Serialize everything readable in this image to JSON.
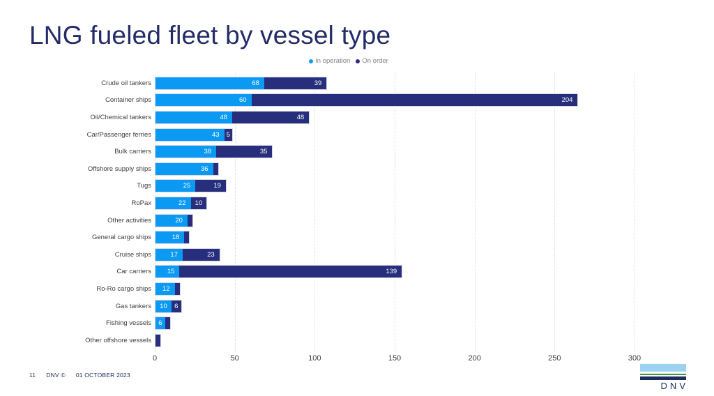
{
  "title": "LNG fueled fleet by vessel type",
  "legend": {
    "items": [
      {
        "label": "In operation",
        "color": "#0a9af4"
      },
      {
        "label": "On order",
        "color": "#272f7d"
      }
    ]
  },
  "chart_data": {
    "type": "bar",
    "orientation": "horizontal",
    "stacked": true,
    "title": "LNG fueled fleet by vessel type",
    "categories": [
      "Crude oil tankers",
      "Container ships",
      "Oil/Chemical tankers",
      "Car/Passenger ferries",
      "Bulk carriers",
      "Offshore supply ships",
      "Tugs",
      "RoPax",
      "Other activities",
      "General cargo ships",
      "Cruise ships",
      "Car carriers",
      "Ro-Ro cargo ships",
      "Gas tankers",
      "Fishing vessels",
      "Other offshore vessels"
    ],
    "series": [
      {
        "name": "In operation",
        "color": "#0a9af4",
        "values": [
          68,
          60,
          48,
          43,
          38,
          36,
          25,
          22,
          20,
          18,
          17,
          15,
          12,
          10,
          6,
          0
        ]
      },
      {
        "name": "On order",
        "color": "#272f7d",
        "values": [
          39,
          204,
          48,
          5,
          35,
          1,
          19,
          10,
          2,
          2,
          23,
          139,
          2,
          6,
          1,
          1
        ]
      }
    ],
    "xlabel": "",
    "ylabel": "",
    "xlim": [
      0,
      320
    ],
    "x_ticks": [
      0,
      50,
      100,
      150,
      200,
      250,
      300
    ],
    "grid": "vertical-dotted",
    "legend_position": "top",
    "value_label_min": 5
  },
  "footer": {
    "page_number": "11",
    "copyright": "DNV ©",
    "date": "01 OCTOBER 2023"
  },
  "logo": {
    "text": "DNV"
  }
}
